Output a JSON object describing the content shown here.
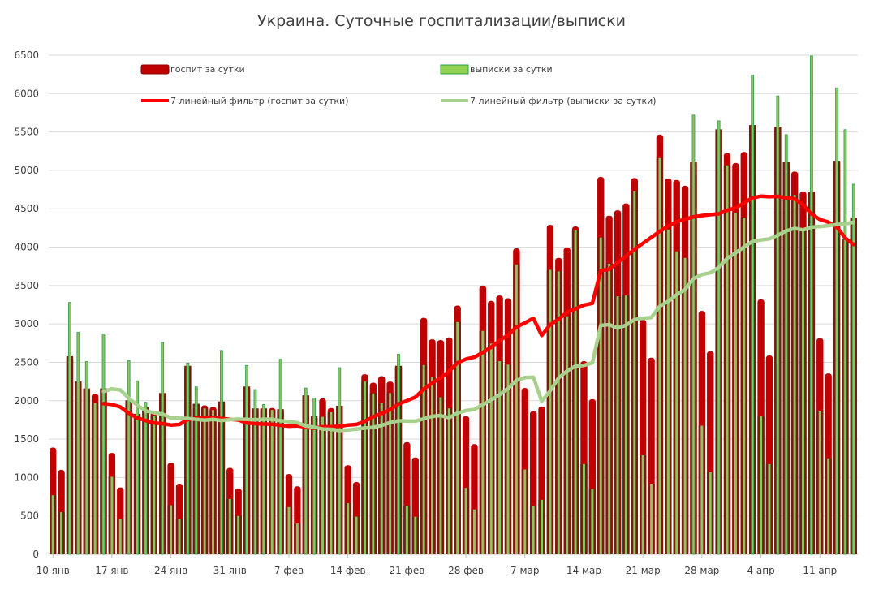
{
  "chart_data": {
    "type": "bar",
    "title": "Украина. Суточные госпитализации/выписки",
    "xlabel": "",
    "ylabel": "",
    "ylim": [
      0,
      6500
    ],
    "yticks": [
      0,
      500,
      1000,
      1500,
      2000,
      2500,
      3000,
      3500,
      4000,
      4500,
      5000,
      5500,
      6000,
      6500
    ],
    "grid": true,
    "legend_position": "top",
    "x_tick_labels": [
      "10 янв",
      "17 янв",
      "24 янв",
      "31 янв",
      "7 фев",
      "14 фев",
      "21 фев",
      "28 фев",
      "7 мар",
      "14 мар",
      "21 мар",
      "28 мар",
      "4 апр",
      "11 апр"
    ],
    "x_tick_every_days": 7,
    "x": [
      "10.01",
      "11.01",
      "12.01",
      "13.01",
      "14.01",
      "15.01",
      "16.01",
      "17.01",
      "18.01",
      "19.01",
      "20.01",
      "21.01",
      "22.01",
      "23.01",
      "24.01",
      "25.01",
      "26.01",
      "27.01",
      "28.01",
      "29.01",
      "30.01",
      "31.01",
      "01.02",
      "02.02",
      "03.02",
      "04.02",
      "05.02",
      "06.02",
      "07.02",
      "08.02",
      "09.02",
      "10.02",
      "11.02",
      "12.02",
      "13.02",
      "14.02",
      "15.02",
      "16.02",
      "17.02",
      "18.02",
      "19.02",
      "20.02",
      "21.02",
      "22.02",
      "23.02",
      "24.02",
      "25.02",
      "26.02",
      "27.02",
      "28.02",
      "01.03",
      "02.03",
      "03.03",
      "04.03",
      "05.03",
      "06.03",
      "07.03",
      "08.03",
      "09.03",
      "10.03",
      "11.03",
      "12.03",
      "13.03",
      "14.03",
      "15.03",
      "16.03",
      "17.03",
      "18.03",
      "19.03",
      "20.03",
      "21.03",
      "22.03",
      "23.03",
      "24.03",
      "25.03",
      "26.03",
      "27.03",
      "28.03",
      "29.03",
      "30.03",
      "31.03",
      "01.04",
      "02.04",
      "03.04",
      "04.04",
      "05.04",
      "06.04",
      "07.04",
      "08.04",
      "09.04",
      "10.04",
      "11.04",
      "12.04",
      "13.04",
      "14.04",
      "15.04"
    ],
    "series": [
      {
        "name": "госпит за сутки",
        "kind": "bar",
        "color": "#c00000",
        "values": [
          1390,
          1100,
          2580,
          2250,
          2160,
          2090,
          2160,
          1320,
          870,
          2005,
          1830,
          1920,
          1870,
          2100,
          1190,
          920,
          2455,
          1960,
          1940,
          1920,
          1990,
          1125,
          855,
          2185,
          1900,
          1900,
          1905,
          1890,
          1045,
          885,
          2070,
          1800,
          2030,
          1905,
          1935,
          1160,
          940,
          2345,
          2235,
          2320,
          2250,
          2455,
          1460,
          1260,
          3080,
          2800,
          2790,
          2825,
          3240,
          1800,
          1435,
          3500,
          3300,
          3370,
          3335,
          3985,
          2165,
          1865,
          1925,
          4290,
          3860,
          3995,
          4270,
          2515,
          2020,
          4915,
          4410,
          4480,
          4570,
          4900,
          3055,
          2560,
          5465,
          4895,
          4875,
          4800,
          5115,
          3170,
          2645,
          5535,
          5225,
          5095,
          5240,
          5590,
          3320,
          2590,
          5570,
          5105,
          4985,
          4725,
          4725,
          2815,
          2355,
          5125,
          4100,
          4385
        ]
      },
      {
        "name": "выписки за сутки",
        "kind": "bar",
        "color": "#92d050",
        "values": [
          770,
          550,
          3280,
          2890,
          2510,
          1970,
          2870,
          1010,
          455,
          2525,
          2260,
          1980,
          1800,
          2760,
          640,
          455,
          2490,
          2180,
          1900,
          1880,
          2655,
          720,
          500,
          2460,
          2145,
          1950,
          1880,
          2540,
          615,
          400,
          2165,
          2035,
          1790,
          1850,
          2430,
          665,
          490,
          2250,
          2095,
          1970,
          2100,
          2605,
          630,
          490,
          2465,
          2315,
          2045,
          1900,
          3025,
          865,
          585,
          2910,
          2745,
          2515,
          2470,
          3775,
          1105,
          630,
          710,
          3705,
          3685,
          3100,
          4220,
          1175,
          850,
          4125,
          3785,
          3360,
          3370,
          4735,
          1290,
          920,
          5160,
          4230,
          3945,
          3860,
          5720,
          1675,
          1070,
          5645,
          5065,
          4450,
          4385,
          6240,
          1800,
          1175,
          5970,
          5465,
          4680,
          4240,
          6490,
          1860,
          1250,
          6075,
          5530,
          4820
        ]
      }
    ],
    "trendlines": [
      {
        "name": "7 линейный фильтр (госпит за сутки)",
        "of": "госпит за сутки",
        "period": 7,
        "color": "#ff0000"
      },
      {
        "name": "7 линейный фильтр (выписки за сутки)",
        "of": "выписки за сутки",
        "period": 7,
        "color": "#a9d18e"
      }
    ]
  }
}
